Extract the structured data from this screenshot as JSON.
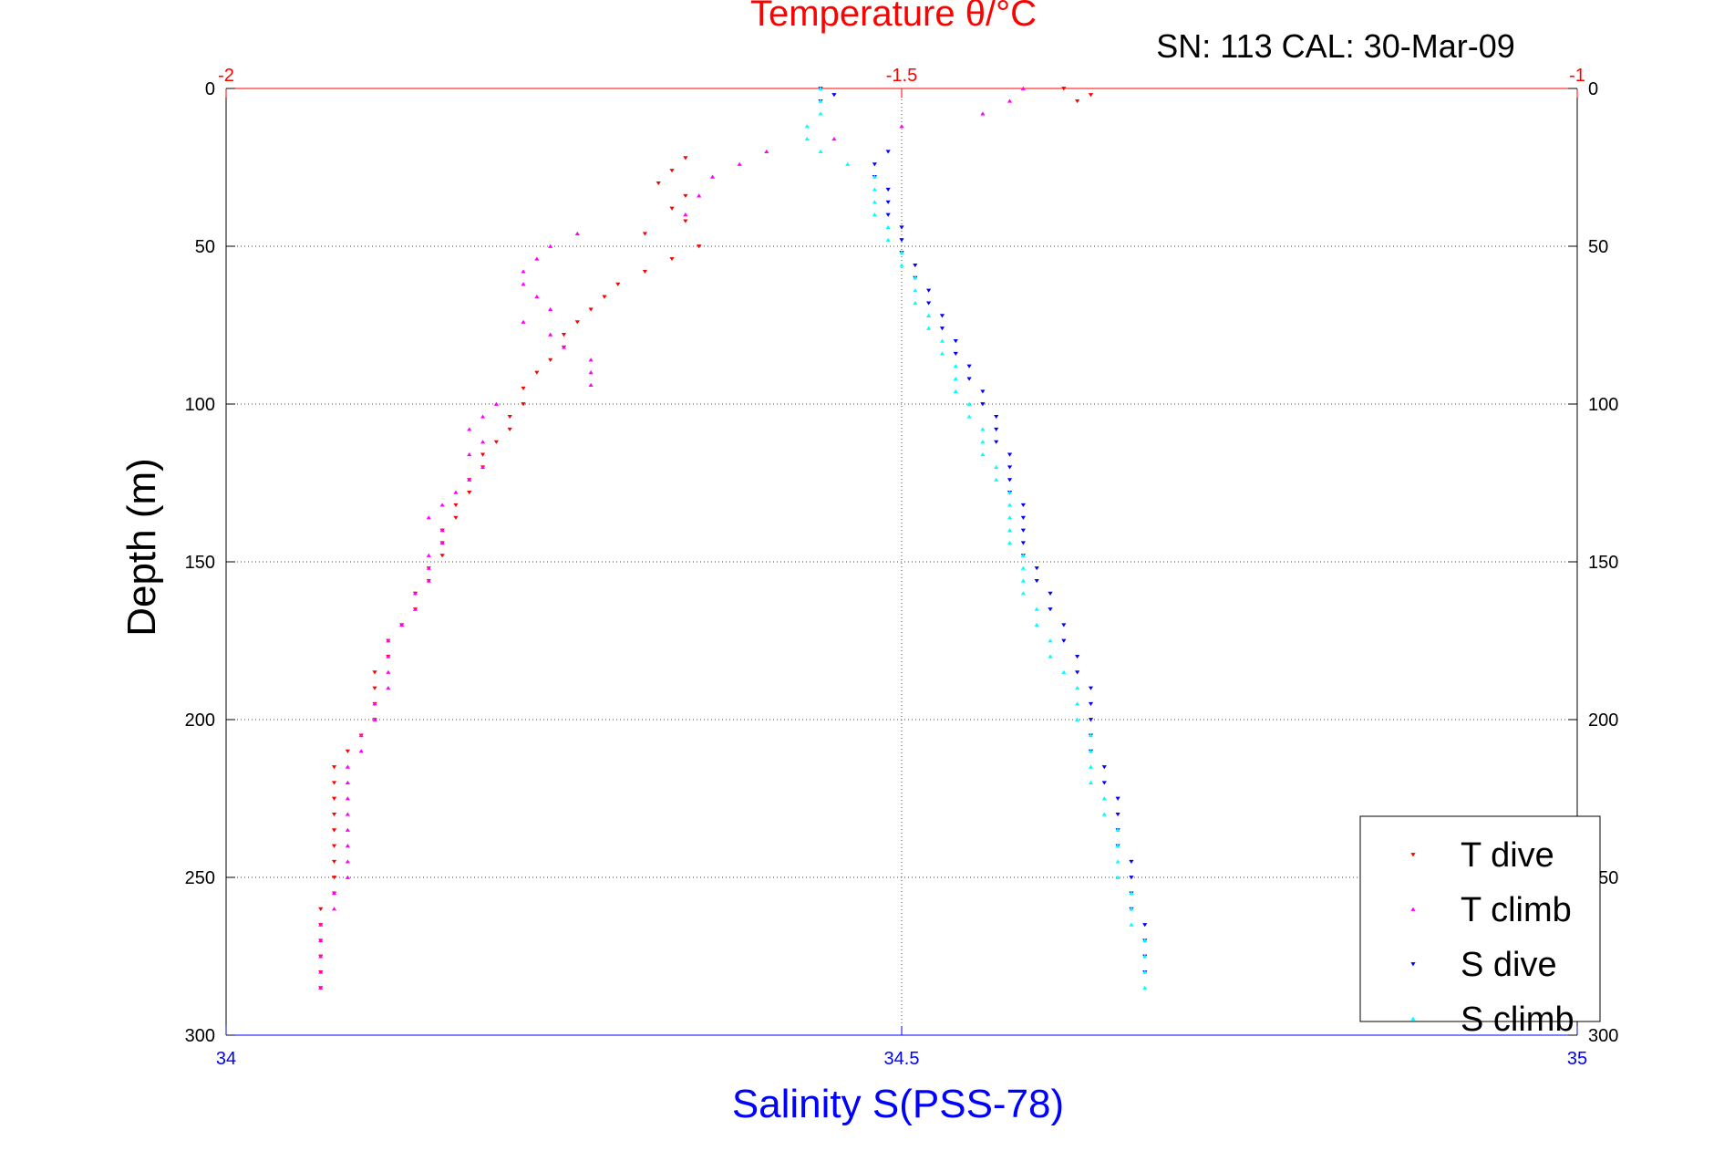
{
  "chart_data": {
    "type": "scatter",
    "title": "Temperature θ/°C",
    "subtitle": "SN: 113  CAL: 30-Mar-09",
    "xlabel": "Salinity S(PSS-78)",
    "ylabel": "Depth (m)",
    "temperature_axis": {
      "range": [
        -2,
        -1
      ],
      "ticks": [
        -2,
        -1.5,
        -1
      ],
      "tick_labels": [
        "-2",
        "-1.5",
        "-1"
      ],
      "color": "#ff0000"
    },
    "salinity_axis": {
      "range": [
        34,
        35
      ],
      "ticks": [
        34,
        34.5,
        35
      ],
      "tick_labels": [
        "34",
        "34.5",
        "35"
      ],
      "color": "#0000ff"
    },
    "depth_axis": {
      "range": [
        0,
        300
      ],
      "reversed": true,
      "ticks": [
        0,
        50,
        100,
        150,
        200,
        250,
        300
      ],
      "tick_labels": [
        "0",
        "50",
        "100",
        "150",
        "200",
        "250",
        "300"
      ]
    },
    "grid": true,
    "legend_position": "bottom-right",
    "series": [
      {
        "name": "T dive",
        "axis": "temperature",
        "marker": "triangle-down",
        "color": "#ff0000",
        "depth": [
          0,
          2,
          4,
          22,
          26,
          30,
          34,
          38,
          42,
          46,
          50,
          54,
          58,
          62,
          66,
          70,
          74,
          78,
          82,
          86,
          90,
          95,
          100,
          104,
          108,
          112,
          116,
          120,
          124,
          128,
          132,
          136,
          140,
          144,
          148,
          152,
          156,
          160,
          165,
          170,
          175,
          180,
          185,
          190,
          195,
          200,
          205,
          210,
          215,
          220,
          225,
          230,
          235,
          240,
          245,
          250,
          255,
          260,
          265,
          270,
          275,
          280,
          285
        ],
        "temperature": [
          -1.38,
          -1.36,
          -1.37,
          -1.66,
          -1.67,
          -1.68,
          -1.66,
          -1.67,
          -1.66,
          -1.69,
          -1.65,
          -1.67,
          -1.69,
          -1.71,
          -1.72,
          -1.73,
          -1.74,
          -1.75,
          -1.75,
          -1.76,
          -1.77,
          -1.78,
          -1.78,
          -1.79,
          -1.79,
          -1.8,
          -1.81,
          -1.81,
          -1.82,
          -1.82,
          -1.83,
          -1.83,
          -1.84,
          -1.84,
          -1.84,
          -1.85,
          -1.85,
          -1.86,
          -1.86,
          -1.87,
          -1.88,
          -1.88,
          -1.89,
          -1.89,
          -1.89,
          -1.89,
          -1.9,
          -1.91,
          -1.92,
          -1.92,
          -1.92,
          -1.92,
          -1.92,
          -1.92,
          -1.92,
          -1.92,
          -1.92,
          -1.93,
          -1.93,
          -1.93,
          -1.93,
          -1.93,
          -1.93
        ]
      },
      {
        "name": "T climb",
        "axis": "temperature",
        "marker": "triangle-up",
        "color": "#ff00ff",
        "depth": [
          0,
          4,
          8,
          12,
          16,
          20,
          24,
          28,
          34,
          40,
          46,
          50,
          54,
          58,
          62,
          66,
          70,
          74,
          78,
          82,
          86,
          90,
          94,
          100,
          104,
          108,
          112,
          116,
          120,
          124,
          128,
          132,
          136,
          140,
          144,
          148,
          152,
          156,
          160,
          165,
          170,
          175,
          180,
          185,
          190,
          195,
          200,
          205,
          210,
          215,
          220,
          225,
          230,
          235,
          240,
          245,
          250,
          255,
          260,
          265,
          270,
          275,
          280,
          285
        ],
        "temperature": [
          -1.41,
          -1.42,
          -1.44,
          -1.5,
          -1.55,
          -1.6,
          -1.62,
          -1.64,
          -1.65,
          -1.66,
          -1.74,
          -1.76,
          -1.77,
          -1.78,
          -1.78,
          -1.77,
          -1.76,
          -1.78,
          -1.76,
          -1.75,
          -1.73,
          -1.73,
          -1.73,
          -1.8,
          -1.81,
          -1.82,
          -1.81,
          -1.82,
          -1.81,
          -1.82,
          -1.83,
          -1.84,
          -1.85,
          -1.84,
          -1.84,
          -1.85,
          -1.85,
          -1.85,
          -1.86,
          -1.86,
          -1.87,
          -1.88,
          -1.88,
          -1.88,
          -1.88,
          -1.89,
          -1.89,
          -1.9,
          -1.9,
          -1.91,
          -1.91,
          -1.91,
          -1.91,
          -1.91,
          -1.91,
          -1.91,
          -1.91,
          -1.92,
          -1.92,
          -1.93,
          -1.93,
          -1.93,
          -1.93,
          -1.93
        ]
      },
      {
        "name": "S dive",
        "axis": "salinity",
        "marker": "triangle-down",
        "color": "#0000ff",
        "depth": [
          0,
          2,
          4,
          20,
          24,
          28,
          32,
          36,
          40,
          44,
          48,
          52,
          56,
          60,
          64,
          68,
          72,
          76,
          80,
          84,
          88,
          92,
          96,
          100,
          104,
          108,
          112,
          116,
          120,
          124,
          128,
          132,
          136,
          140,
          144,
          148,
          152,
          156,
          160,
          165,
          170,
          175,
          180,
          185,
          190,
          195,
          200,
          205,
          210,
          215,
          220,
          225,
          230,
          235,
          240,
          245,
          250,
          255,
          260,
          265,
          270,
          275,
          280
        ],
        "salinity": [
          34.44,
          34.45,
          34.44,
          34.49,
          34.48,
          34.48,
          34.49,
          34.49,
          34.49,
          34.5,
          34.5,
          34.5,
          34.51,
          34.51,
          34.52,
          34.52,
          34.53,
          34.53,
          34.54,
          34.54,
          34.55,
          34.55,
          34.56,
          34.56,
          34.57,
          34.57,
          34.57,
          34.58,
          34.58,
          34.58,
          34.58,
          34.59,
          34.59,
          34.59,
          34.59,
          34.59,
          34.6,
          34.6,
          34.61,
          34.61,
          34.62,
          34.62,
          34.63,
          34.63,
          34.64,
          34.64,
          34.64,
          34.64,
          34.64,
          34.65,
          34.65,
          34.66,
          34.66,
          34.66,
          34.66,
          34.67,
          34.67,
          34.67,
          34.67,
          34.68,
          34.68,
          34.68,
          34.68
        ]
      },
      {
        "name": "S climb",
        "axis": "salinity",
        "marker": "triangle-up",
        "color": "#00ffff",
        "depth": [
          0,
          4,
          8,
          12,
          16,
          20,
          24,
          28,
          32,
          36,
          40,
          44,
          48,
          52,
          56,
          60,
          64,
          68,
          72,
          76,
          80,
          84,
          88,
          92,
          96,
          100,
          104,
          108,
          112,
          116,
          120,
          124,
          128,
          132,
          136,
          140,
          144,
          148,
          152,
          156,
          160,
          165,
          170,
          175,
          180,
          185,
          190,
          195,
          200,
          205,
          210,
          215,
          220,
          225,
          230,
          235,
          240,
          245,
          250,
          255,
          260,
          265,
          270,
          275,
          280,
          285
        ],
        "salinity": [
          34.44,
          34.44,
          34.44,
          34.43,
          34.43,
          34.44,
          34.46,
          34.48,
          34.48,
          34.48,
          34.48,
          34.49,
          34.49,
          34.5,
          34.5,
          34.51,
          34.51,
          34.51,
          34.52,
          34.52,
          34.53,
          34.53,
          34.54,
          34.54,
          34.54,
          34.55,
          34.55,
          34.56,
          34.56,
          34.56,
          34.57,
          34.57,
          34.58,
          34.58,
          34.58,
          34.58,
          34.58,
          34.59,
          34.59,
          34.59,
          34.59,
          34.6,
          34.6,
          34.61,
          34.61,
          34.62,
          34.63,
          34.63,
          34.63,
          34.64,
          34.64,
          34.64,
          34.64,
          34.65,
          34.65,
          34.66,
          34.66,
          34.66,
          34.66,
          34.67,
          34.67,
          34.67,
          34.68,
          34.68,
          34.68,
          34.68
        ]
      }
    ]
  }
}
